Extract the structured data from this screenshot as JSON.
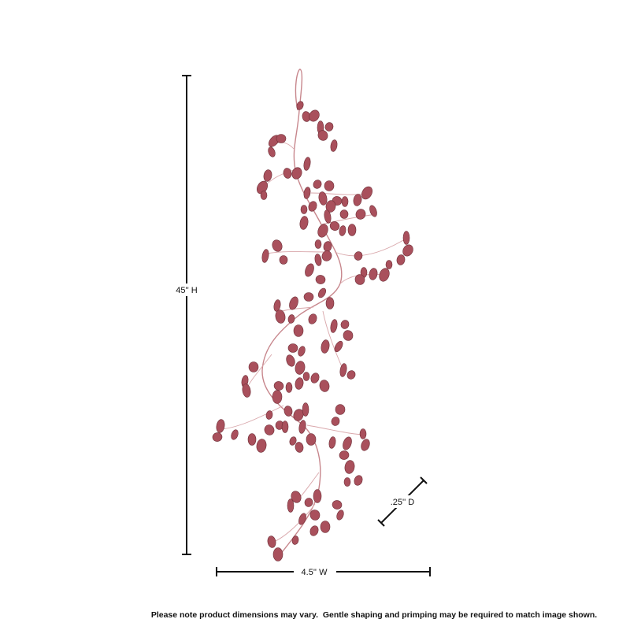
{
  "dimensions": {
    "height": "45'' H",
    "width": "4.5'' W",
    "depth": ".25'' D"
  },
  "note": "Please note product dimensions may vary.  Gentle shaping and primping may be required to match image shown."
}
